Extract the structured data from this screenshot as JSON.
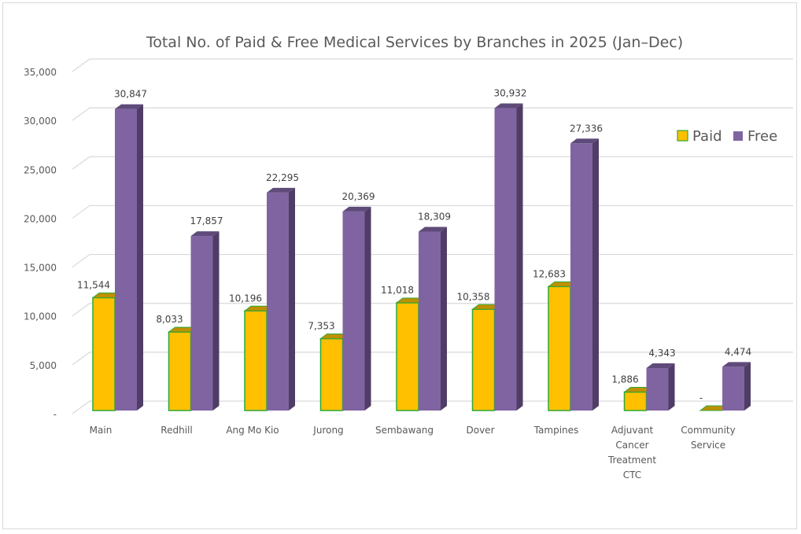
{
  "chart_data": {
    "type": "bar",
    "style": "3d-clustered-column",
    "title": "Total No. of Paid & Free Medical Services by Branches in 2025 (Jan–Dec)",
    "xlabel": "",
    "ylabel": "",
    "ylim": [
      0,
      35000
    ],
    "yticks": [
      0,
      5000,
      10000,
      15000,
      20000,
      25000,
      30000,
      35000
    ],
    "ytick_labels": [
      "-",
      "5,000",
      "10,000",
      "15,000",
      "20,000",
      "25,000",
      "30,000",
      "35,000"
    ],
    "grid": true,
    "legend_position": "right",
    "categories": [
      [
        "Main"
      ],
      [
        "Redhill"
      ],
      [
        "Ang Mo Kio"
      ],
      [
        "Jurong"
      ],
      [
        "Sembawang"
      ],
      [
        "Dover"
      ],
      [
        "Tampines"
      ],
      [
        "Adjuvant",
        "Cancer",
        "Treatment",
        "CTC"
      ],
      [
        "Community",
        "Service"
      ]
    ],
    "series": [
      {
        "name": "Paid",
        "color": "#FFC000",
        "top_color": "#BF9000",
        "border_color": "#2EA836",
        "values": [
          11544,
          8033,
          10196,
          7353,
          11018,
          10358,
          12683,
          1886,
          0
        ],
        "labels": [
          "11,544",
          "8,033",
          "10,196",
          "7,353",
          "11,018",
          "10,358",
          "12,683",
          "1,886",
          "-"
        ]
      },
      {
        "name": "Free",
        "color": "#8064A2",
        "top_color": "#5F4B7A",
        "side_color": "#4F3D66",
        "values": [
          30847,
          17857,
          22295,
          20369,
          18309,
          30932,
          27336,
          4343,
          4474
        ],
        "labels": [
          "30,847",
          "17,857",
          "22,295",
          "20,369",
          "18,309",
          "30,932",
          "27,336",
          "4,343",
          "4,474"
        ]
      }
    ]
  }
}
